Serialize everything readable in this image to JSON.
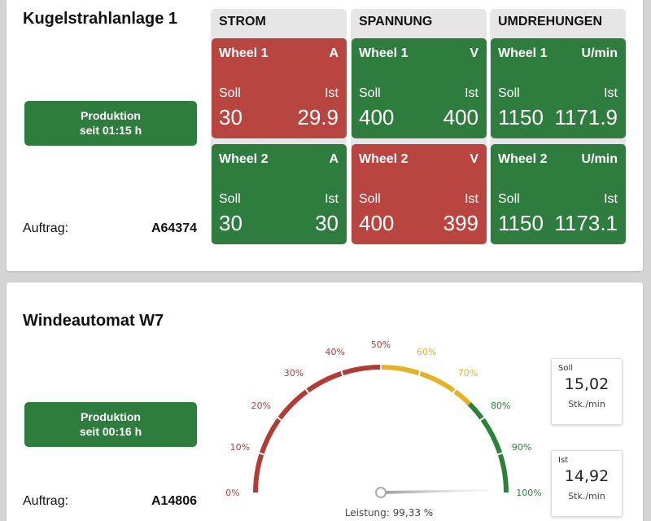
{
  "machines": [
    {
      "title": "Kugelstrahlanlage 1",
      "status": {
        "line1": "Produktion",
        "line2": "seit 01:15 h",
        "color": "#2e7d3e"
      },
      "order_label": "Auftrag:",
      "order_value": "A64374",
      "columns": [
        {
          "header": "STROM",
          "tiles": [
            {
              "name": "Wheel 1",
              "unit": "A",
              "soll_label": "Soll",
              "ist_label": "Ist",
              "soll": "30",
              "ist": "29.9",
              "state": "red"
            },
            {
              "name": "Wheel 2",
              "unit": "A",
              "soll_label": "Soll",
              "ist_label": "Ist",
              "soll": "30",
              "ist": "30",
              "state": "green"
            }
          ]
        },
        {
          "header": "SPANNUNG",
          "tiles": [
            {
              "name": "Wheel 1",
              "unit": "V",
              "soll_label": "Soll",
              "ist_label": "Ist",
              "soll": "400",
              "ist": "400",
              "state": "green"
            },
            {
              "name": "Wheel 2",
              "unit": "V",
              "soll_label": "Soll",
              "ist_label": "Ist",
              "soll": "400",
              "ist": "399",
              "state": "red"
            }
          ]
        },
        {
          "header": "UMDREHUNGEN",
          "tiles": [
            {
              "name": "Wheel 1",
              "unit": "U/min",
              "soll_label": "Soll",
              "ist_label": "Ist",
              "soll": "1150",
              "ist": "1171.9",
              "state": "green"
            },
            {
              "name": "Wheel 2",
              "unit": "U/min",
              "soll_label": "Soll",
              "ist_label": "Ist",
              "soll": "1150",
              "ist": "1173.1",
              "state": "green"
            }
          ]
        }
      ]
    },
    {
      "title": "Windeautomat W7",
      "status": {
        "line1": "Produktion",
        "line2": "seit 00:16 h",
        "color": "#2e7d3e"
      },
      "order_label": "Auftrag:",
      "order_value": "A14806",
      "gauge": {
        "ticks": [
          "0%",
          "10%",
          "20%",
          "30%",
          "40%",
          "50%",
          "60%",
          "70%",
          "80%",
          "90%",
          "100%"
        ],
        "bands": [
          {
            "from": 0,
            "to": 50,
            "color": "#b23b36"
          },
          {
            "from": 50,
            "to": 75,
            "color": "#e3b229"
          },
          {
            "from": 75,
            "to": 100,
            "color": "#2a8137"
          }
        ],
        "value": 99.33,
        "caption": "Leistung: 99,33 %"
      },
      "kpis": [
        {
          "label": "Soll",
          "value": "15,02",
          "unit": "Stk./min"
        },
        {
          "label": "Ist",
          "value": "14,92",
          "unit": "Stk./min"
        }
      ]
    }
  ],
  "colors": {
    "green": "#2e7d3e",
    "red": "#b94540",
    "header_bg": "#e6e6e6",
    "page_bg": "#d4d4d4"
  }
}
